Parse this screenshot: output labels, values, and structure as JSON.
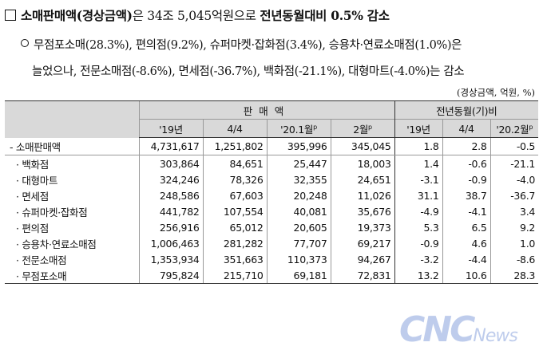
{
  "headline": {
    "part1": "소매판매액(경상금액)",
    "part2": "은 34조 5,045억원으로 ",
    "part3": "전년동월대비 0.5% 감소"
  },
  "detail": {
    "line1": "무점포소매(28.3%), 편의점(9.2%), 슈퍼마켓·잡화점(3.4%), 승용차·연료소매점(1.0%)은",
    "line2": "늘었으나, 전문소매점(-8.6%), 면세점(-36.7%), 백화점(-21.1%), 대형마트(-4.0%)는 감소"
  },
  "unit_note": "(경상금액, 억원, %)",
  "table": {
    "group_sales": "판매액",
    "group_yoy": "전년동월(기)비",
    "columns": {
      "c1": "'19년",
      "c2": "4/4",
      "c3": "'20.1월",
      "c3_sup": "p",
      "c4": "2월",
      "c4_sup": "p",
      "c5": "'19년",
      "c6": "4/4",
      "c7": "'20.2월",
      "c7_sup": "p"
    },
    "rows": [
      {
        "label": "- 소매판매액",
        "v": [
          "4,731,617",
          "1,251,802",
          "395,996",
          "345,045",
          "1.8",
          "2.8",
          "-0.5"
        ]
      },
      {
        "label": "· 백화점",
        "v": [
          "303,864",
          "84,651",
          "25,447",
          "18,003",
          "1.4",
          "-0.6",
          "-21.1"
        ]
      },
      {
        "label": "· 대형마트",
        "v": [
          "324,246",
          "78,326",
          "32,355",
          "24,651",
          "-3.1",
          "-0.9",
          "-4.0"
        ]
      },
      {
        "label": "· 면세점",
        "v": [
          "248,586",
          "67,603",
          "20,248",
          "11,026",
          "31.1",
          "38.7",
          "-36.7"
        ]
      },
      {
        "label": "· 슈퍼마켓·잡화점",
        "v": [
          "441,782",
          "107,554",
          "40,081",
          "35,676",
          "-4.9",
          "-4.1",
          "3.4"
        ]
      },
      {
        "label": "· 편의점",
        "v": [
          "256,916",
          "65,012",
          "20,605",
          "19,373",
          "5.3",
          "6.5",
          "9.2"
        ]
      },
      {
        "label": "· 승용차·연료소매점",
        "v": [
          "1,006,463",
          "281,282",
          "77,707",
          "69,217",
          "-0.9",
          "4.6",
          "1.0"
        ]
      },
      {
        "label": "· 전문소매점",
        "v": [
          "1,353,934",
          "351,663",
          "110,373",
          "94,267",
          "-3.2",
          "-4.4",
          "-8.6"
        ]
      },
      {
        "label": "· 무점포소매",
        "v": [
          "795,824",
          "215,710",
          "69,181",
          "72,831",
          "13.2",
          "10.6",
          "28.3"
        ]
      }
    ]
  },
  "watermark": {
    "big": "CNC",
    "small": "News"
  }
}
